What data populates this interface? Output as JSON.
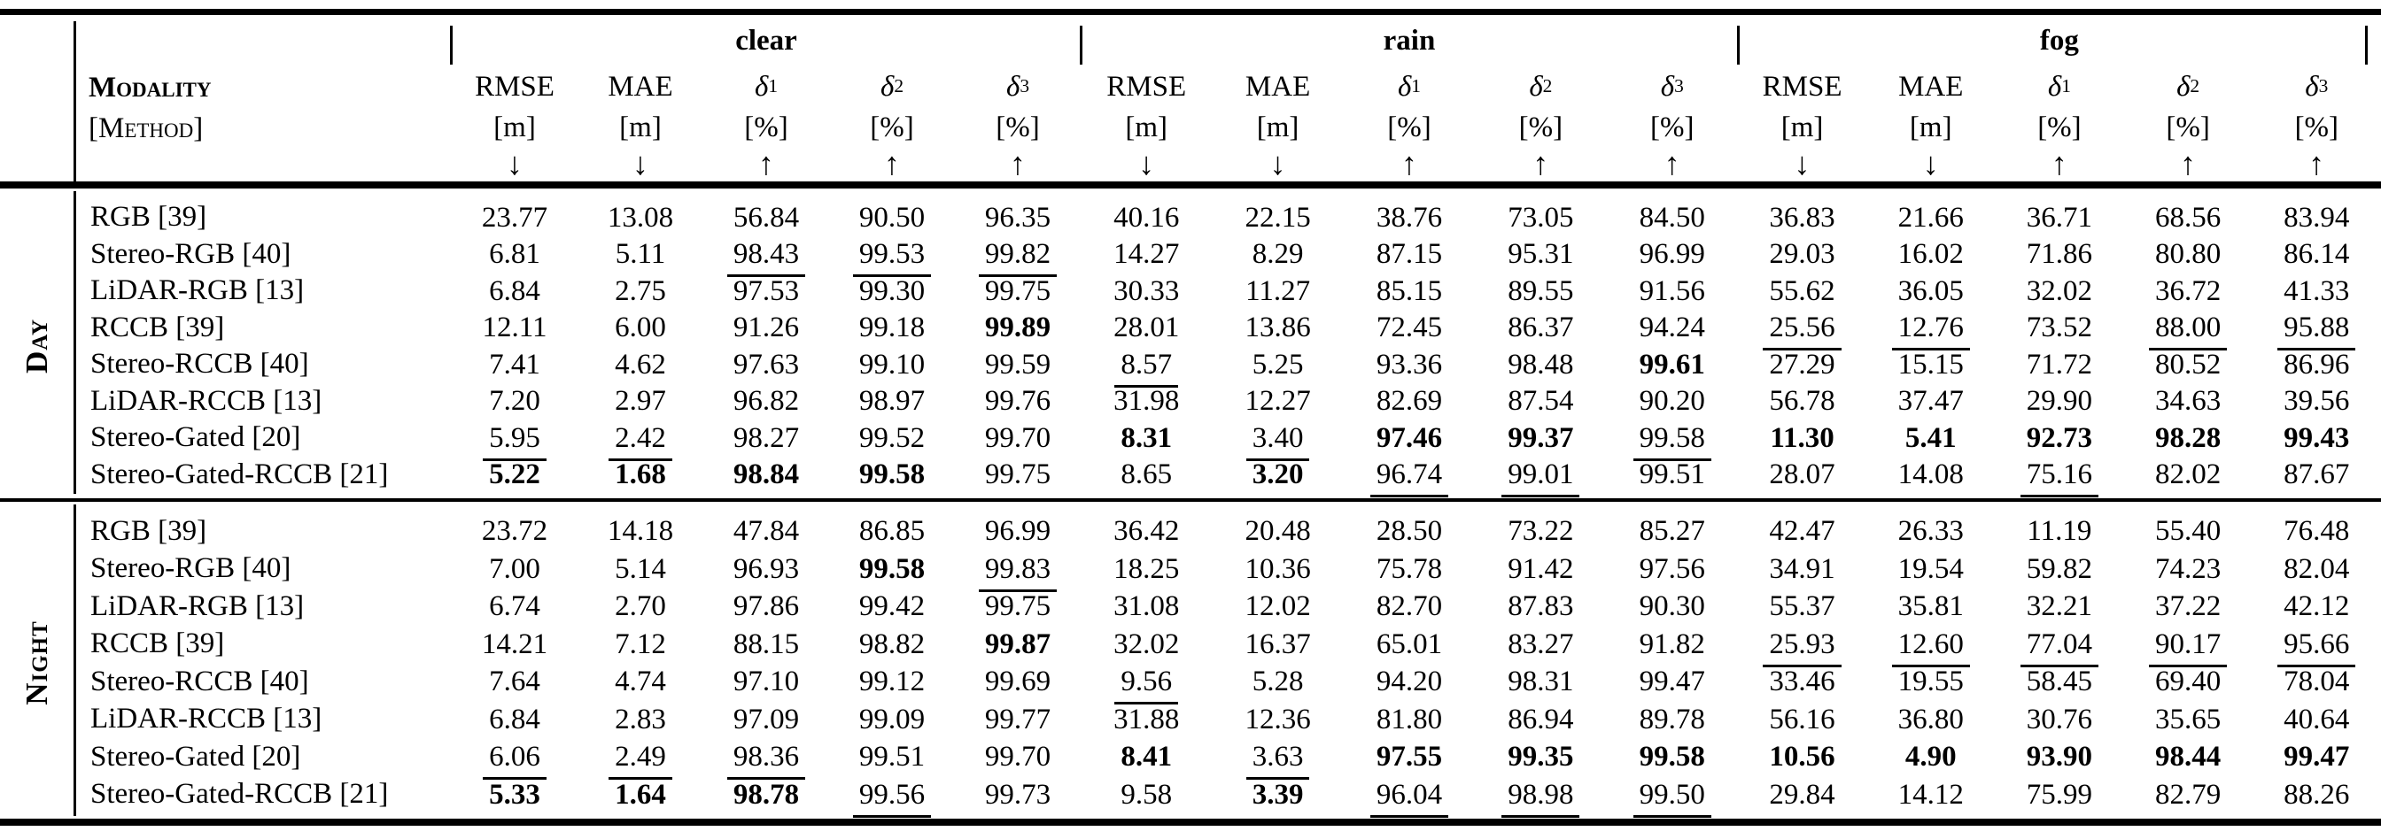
{
  "table": {
    "row_header": {
      "line1": "Modality",
      "line2": "[Method]"
    },
    "groups": [
      "clear",
      "rain",
      "fog"
    ],
    "metrics": [
      {
        "name": "RMSE",
        "sub": "",
        "unit": "[m]",
        "arrow": "↓"
      },
      {
        "name": "MAE",
        "sub": "",
        "unit": "[m]",
        "arrow": "↓"
      },
      {
        "name": "δ",
        "sub": "1",
        "unit": "[%]",
        "arrow": "↑"
      },
      {
        "name": "δ",
        "sub": "2",
        "unit": "[%]",
        "arrow": "↑"
      },
      {
        "name": "δ",
        "sub": "3",
        "unit": "[%]",
        "arrow": "↑"
      }
    ],
    "sections": [
      {
        "label": "Day",
        "rows": [
          {
            "method": "RGB [39]",
            "values": [
              "23.77",
              "13.08",
              "56.84",
              "90.50",
              "96.35",
              "40.16",
              "22.15",
              "38.76",
              "73.05",
              "84.50",
              "36.83",
              "21.66",
              "36.71",
              "68.56",
              "83.94"
            ],
            "styles": [
              "",
              "",
              "",
              "",
              "",
              "",
              "",
              "",
              "",
              "",
              "",
              "",
              "",
              "",
              ""
            ]
          },
          {
            "method": "Stereo-RGB [40]",
            "values": [
              "6.81",
              "5.11",
              "98.43",
              "99.53",
              "99.82",
              "14.27",
              "8.29",
              "87.15",
              "95.31",
              "96.99",
              "29.03",
              "16.02",
              "71.86",
              "80.80",
              "86.14"
            ],
            "styles": [
              "",
              "",
              "u",
              "u",
              "u",
              "",
              "",
              "",
              "",
              "",
              "",
              "",
              "",
              "",
              ""
            ]
          },
          {
            "method": "LiDAR-RGB [13]",
            "values": [
              "6.84",
              "2.75",
              "97.53",
              "99.30",
              "99.75",
              "30.33",
              "11.27",
              "85.15",
              "89.55",
              "91.56",
              "55.62",
              "36.05",
              "32.02",
              "36.72",
              "41.33"
            ],
            "styles": [
              "",
              "",
              "",
              "",
              "",
              "",
              "",
              "",
              "",
              "",
              "",
              "",
              "",
              "",
              ""
            ]
          },
          {
            "method": "RCCB [39]",
            "values": [
              "12.11",
              "6.00",
              "91.26",
              "99.18",
              "99.89",
              "28.01",
              "13.86",
              "72.45",
              "86.37",
              "94.24",
              "25.56",
              "12.76",
              "73.52",
              "88.00",
              "95.88"
            ],
            "styles": [
              "",
              "",
              "",
              "",
              "b",
              "",
              "",
              "",
              "",
              "",
              "u",
              "u",
              "",
              "u",
              "u"
            ]
          },
          {
            "method": "Stereo-RCCB [40]",
            "values": [
              "7.41",
              "4.62",
              "97.63",
              "99.10",
              "99.59",
              "8.57",
              "5.25",
              "93.36",
              "98.48",
              "99.61",
              "27.29",
              "15.15",
              "71.72",
              "80.52",
              "86.96"
            ],
            "styles": [
              "",
              "",
              "",
              "",
              "",
              "u",
              "",
              "",
              "",
              "b",
              "",
              "",
              "",
              "",
              ""
            ]
          },
          {
            "method": "LiDAR-RCCB [13]",
            "values": [
              "7.20",
              "2.97",
              "96.82",
              "98.97",
              "99.76",
              "31.98",
              "12.27",
              "82.69",
              "87.54",
              "90.20",
              "56.78",
              "37.47",
              "29.90",
              "34.63",
              "39.56"
            ],
            "styles": [
              "",
              "",
              "",
              "",
              "",
              "",
              "",
              "",
              "",
              "",
              "",
              "",
              "",
              "",
              ""
            ]
          },
          {
            "method": "Stereo-Gated [20]",
            "values": [
              "5.95",
              "2.42",
              "98.27",
              "99.52",
              "99.70",
              "8.31",
              "3.40",
              "97.46",
              "99.37",
              "99.58",
              "11.30",
              "5.41",
              "92.73",
              "98.28",
              "99.43"
            ],
            "styles": [
              "u",
              "u",
              "",
              "",
              "",
              "b",
              "u",
              "b",
              "b",
              "u",
              "b",
              "b",
              "b",
              "b",
              "b"
            ]
          },
          {
            "method": "Stereo-Gated-RCCB [21]",
            "values": [
              "5.22",
              "1.68",
              "98.84",
              "99.58",
              "99.75",
              "8.65",
              "3.20",
              "96.74",
              "99.01",
              "99.51",
              "28.07",
              "14.08",
              "75.16",
              "82.02",
              "87.67"
            ],
            "styles": [
              "b",
              "b",
              "b",
              "b",
              "",
              "",
              "b",
              "u",
              "u",
              "",
              "",
              "",
              "u",
              "",
              ""
            ]
          }
        ]
      },
      {
        "label": "Night",
        "rows": [
          {
            "method": "RGB [39]",
            "values": [
              "23.72",
              "14.18",
              "47.84",
              "86.85",
              "96.99",
              "36.42",
              "20.48",
              "28.50",
              "73.22",
              "85.27",
              "42.47",
              "26.33",
              "11.19",
              "55.40",
              "76.48"
            ],
            "styles": [
              "",
              "",
              "",
              "",
              "",
              "",
              "",
              "",
              "",
              "",
              "",
              "",
              "",
              "",
              ""
            ]
          },
          {
            "method": "Stereo-RGB [40]",
            "values": [
              "7.00",
              "5.14",
              "96.93",
              "99.58",
              "99.83",
              "18.25",
              "10.36",
              "75.78",
              "91.42",
              "97.56",
              "34.91",
              "19.54",
              "59.82",
              "74.23",
              "82.04"
            ],
            "styles": [
              "",
              "",
              "",
              "b",
              "u",
              "",
              "",
              "",
              "",
              "",
              "",
              "",
              "",
              "",
              ""
            ]
          },
          {
            "method": "LiDAR-RGB [13]",
            "values": [
              "6.74",
              "2.70",
              "97.86",
              "99.42",
              "99.75",
              "31.08",
              "12.02",
              "82.70",
              "87.83",
              "90.30",
              "55.37",
              "35.81",
              "32.21",
              "37.22",
              "42.12"
            ],
            "styles": [
              "",
              "",
              "",
              "",
              "",
              "",
              "",
              "",
              "",
              "",
              "",
              "",
              "",
              "",
              ""
            ]
          },
          {
            "method": "RCCB [39]",
            "values": [
              "14.21",
              "7.12",
              "88.15",
              "98.82",
              "99.87",
              "32.02",
              "16.37",
              "65.01",
              "83.27",
              "91.82",
              "25.93",
              "12.60",
              "77.04",
              "90.17",
              "95.66"
            ],
            "styles": [
              "",
              "",
              "",
              "",
              "b",
              "",
              "",
              "",
              "",
              "",
              "u",
              "u",
              "u",
              "u",
              "u"
            ]
          },
          {
            "method": "Stereo-RCCB [40]",
            "values": [
              "7.64",
              "4.74",
              "97.10",
              "99.12",
              "99.69",
              "9.56",
              "5.28",
              "94.20",
              "98.31",
              "99.47",
              "33.46",
              "19.55",
              "58.45",
              "69.40",
              "78.04"
            ],
            "styles": [
              "",
              "",
              "",
              "",
              "",
              "u",
              "",
              "",
              "",
              "",
              "",
              "",
              "",
              "",
              ""
            ]
          },
          {
            "method": "LiDAR-RCCB [13]",
            "values": [
              "6.84",
              "2.83",
              "97.09",
              "99.09",
              "99.77",
              "31.88",
              "12.36",
              "81.80",
              "86.94",
              "89.78",
              "56.16",
              "36.80",
              "30.76",
              "35.65",
              "40.64"
            ],
            "styles": [
              "",
              "",
              "",
              "",
              "",
              "",
              "",
              "",
              "",
              "",
              "",
              "",
              "",
              "",
              ""
            ]
          },
          {
            "method": "Stereo-Gated [20]",
            "values": [
              "6.06",
              "2.49",
              "98.36",
              "99.51",
              "99.70",
              "8.41",
              "3.63",
              "97.55",
              "99.35",
              "99.58",
              "10.56",
              "4.90",
              "93.90",
              "98.44",
              "99.47"
            ],
            "styles": [
              "u",
              "u",
              "u",
              "",
              "",
              "b",
              "u",
              "b",
              "b",
              "b",
              "b",
              "b",
              "b",
              "b",
              "b"
            ]
          },
          {
            "method": "Stereo-Gated-RCCB [21]",
            "values": [
              "5.33",
              "1.64",
              "98.78",
              "99.56",
              "99.73",
              "9.58",
              "3.39",
              "96.04",
              "98.98",
              "99.50",
              "29.84",
              "14.12",
              "75.99",
              "82.79",
              "88.26"
            ],
            "styles": [
              "b",
              "b",
              "b",
              "u",
              "",
              "",
              "b",
              "u",
              "u",
              "u",
              "",
              "",
              "",
              "",
              ""
            ]
          }
        ]
      }
    ]
  },
  "colors": {
    "text": "#000000",
    "background": "#ffffff",
    "rule": "#000000"
  }
}
